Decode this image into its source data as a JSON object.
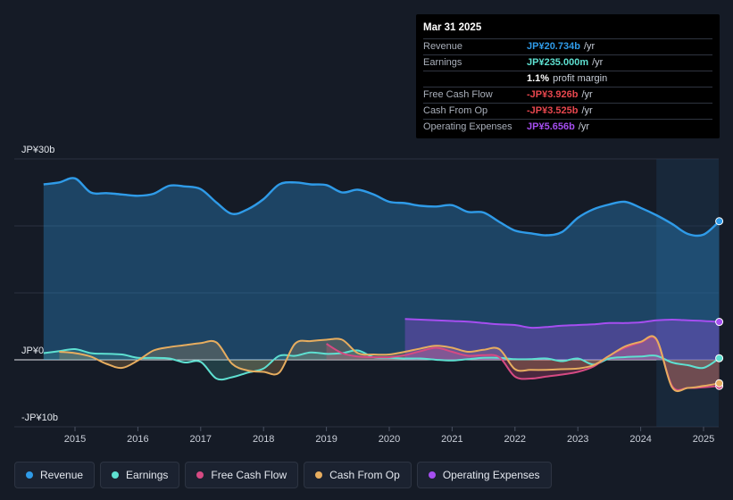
{
  "tooltip": {
    "date": "Mar 31 2025",
    "rows": [
      {
        "label": "Revenue",
        "value": "JP¥20.734b",
        "unit": "/yr",
        "color": "#2f9be8"
      },
      {
        "label": "Earnings",
        "value": "JP¥235.000m",
        "unit": "/yr",
        "color": "#5ee0d1"
      },
      {
        "label": "",
        "value": "1.1%",
        "unit": "profit margin",
        "color": "#ffffff"
      },
      {
        "label": "Free Cash Flow",
        "value": "-JP¥3.926b",
        "unit": "/yr",
        "color": "#e8474e"
      },
      {
        "label": "Cash From Op",
        "value": "-JP¥3.525b",
        "unit": "/yr",
        "color": "#e8474e"
      },
      {
        "label": "Operating Expenses",
        "value": "JP¥5.656b",
        "unit": "/yr",
        "color": "#a54ef0"
      }
    ]
  },
  "legend": [
    {
      "label": "Revenue",
      "color": "#2f9be8"
    },
    {
      "label": "Earnings",
      "color": "#5ee0d1"
    },
    {
      "label": "Free Cash Flow",
      "color": "#d64a83"
    },
    {
      "label": "Cash From Op",
      "color": "#e7ad5f"
    },
    {
      "label": "Operating Expenses",
      "color": "#a54ef0"
    }
  ],
  "chart_data": {
    "type": "area",
    "title": "",
    "xlabel": "",
    "ylabel": "",
    "unit": "JP¥b",
    "ylim": [
      -10,
      30
    ],
    "y_tick_labels": [
      {
        "value": 30,
        "label": "JP¥30b"
      },
      {
        "value": 0,
        "label": "JP¥0"
      },
      {
        "value": -10,
        "label": "-JP¥10b"
      }
    ],
    "gridlines": [
      30,
      20,
      10,
      0,
      -10
    ],
    "x_ticks": [
      2015,
      2016,
      2017,
      2018,
      2019,
      2020,
      2021,
      2022,
      2023,
      2024,
      2025
    ],
    "x_range": [
      2014.3,
      2025.25
    ],
    "forecast_start": 2024.25,
    "series": [
      {
        "name": "Revenue",
        "color": "#2f9be8",
        "x": [
          2014.5,
          2014.75,
          2015.0,
          2015.25,
          2015.5,
          2015.75,
          2016.0,
          2016.25,
          2016.5,
          2016.75,
          2017.0,
          2017.25,
          2017.5,
          2017.75,
          2018.0,
          2018.25,
          2018.5,
          2018.75,
          2019.0,
          2019.25,
          2019.5,
          2019.75,
          2020.0,
          2020.25,
          2020.5,
          2020.75,
          2021.0,
          2021.25,
          2021.5,
          2021.75,
          2022.0,
          2022.25,
          2022.5,
          2022.75,
          2023.0,
          2023.25,
          2023.5,
          2023.75,
          2024.0,
          2024.25,
          2024.5,
          2024.75,
          2025.0,
          2025.25
        ],
        "values": [
          26.2,
          26.5,
          27.1,
          25.0,
          24.9,
          24.7,
          24.5,
          24.8,
          26.0,
          25.9,
          25.5,
          23.5,
          21.8,
          22.5,
          24.0,
          26.2,
          26.5,
          26.2,
          26.1,
          25.0,
          25.4,
          24.7,
          23.6,
          23.4,
          23.0,
          22.9,
          23.1,
          22.1,
          22.0,
          20.6,
          19.3,
          18.9,
          18.6,
          19.1,
          21.2,
          22.5,
          23.2,
          23.6,
          22.7,
          21.6,
          20.3,
          18.8,
          18.7,
          20.7
        ]
      },
      {
        "name": "Earnings",
        "color": "#5ee0d1",
        "x": [
          2014.5,
          2014.75,
          2015.0,
          2015.25,
          2015.5,
          2015.75,
          2016.0,
          2016.25,
          2016.5,
          2016.75,
          2017.0,
          2017.25,
          2017.5,
          2017.75,
          2018.0,
          2018.25,
          2018.5,
          2018.75,
          2019.0,
          2019.25,
          2019.5,
          2019.75,
          2020.0,
          2020.25,
          2020.5,
          2020.75,
          2021.0,
          2021.25,
          2021.5,
          2021.75,
          2022.0,
          2022.25,
          2022.5,
          2022.75,
          2023.0,
          2023.25,
          2023.5,
          2023.75,
          2024.0,
          2024.25,
          2024.5,
          2024.75,
          2025.0,
          2025.25
        ],
        "values": [
          1.0,
          1.3,
          1.6,
          1.0,
          0.9,
          0.8,
          0.3,
          0.3,
          0.2,
          -0.4,
          -0.3,
          -2.8,
          -2.6,
          -1.9,
          -1.3,
          0.6,
          0.6,
          1.1,
          0.9,
          1.0,
          1.4,
          0.4,
          0.3,
          0.2,
          0.2,
          0.0,
          -0.1,
          0.1,
          0.3,
          0.3,
          0.1,
          0.1,
          0.2,
          -0.2,
          0.2,
          -0.7,
          0.2,
          0.4,
          0.5,
          0.6,
          -0.4,
          -0.8,
          -1.2,
          0.24
        ]
      },
      {
        "name": "Free Cash Flow",
        "color": "#d64a83",
        "x": [
          2019.0,
          2019.25,
          2019.5,
          2019.75,
          2020.0,
          2020.25,
          2020.5,
          2020.75,
          2021.0,
          2021.25,
          2021.5,
          2021.75,
          2022.0,
          2022.25,
          2022.5,
          2022.75,
          2023.0,
          2023.25,
          2023.5,
          2023.75,
          2024.0,
          2024.25,
          2024.5,
          2024.75,
          2025.0,
          2025.25
        ],
        "values": [
          2.4,
          1.0,
          0.5,
          0.4,
          0.4,
          0.7,
          1.3,
          1.8,
          1.2,
          0.6,
          0.7,
          0.4,
          -2.5,
          -2.8,
          -2.5,
          -2.2,
          -1.8,
          -1.0,
          0.6,
          1.8,
          2.6,
          3.0,
          -3.9,
          -4.2,
          -4.1,
          -3.9
        ]
      },
      {
        "name": "Cash From Op",
        "color": "#e7ad5f",
        "x": [
          2014.75,
          2015.0,
          2015.25,
          2015.5,
          2015.75,
          2016.0,
          2016.25,
          2016.5,
          2016.75,
          2017.0,
          2017.25,
          2017.5,
          2017.75,
          2018.0,
          2018.25,
          2018.5,
          2018.75,
          2019.0,
          2019.25,
          2019.5,
          2019.75,
          2020.0,
          2020.25,
          2020.5,
          2020.75,
          2021.0,
          2021.25,
          2021.5,
          2021.75,
          2022.0,
          2022.25,
          2022.5,
          2022.75,
          2023.0,
          2023.25,
          2023.5,
          2023.75,
          2024.0,
          2024.25,
          2024.5,
          2024.75,
          2025.0,
          2025.25
        ],
        "values": [
          1.2,
          1.0,
          0.5,
          -0.6,
          -1.2,
          -0.1,
          1.4,
          1.9,
          2.2,
          2.5,
          2.6,
          -0.6,
          -1.6,
          -1.8,
          -1.9,
          2.4,
          2.8,
          3.0,
          3.0,
          1.0,
          0.8,
          0.8,
          1.2,
          1.7,
          2.1,
          1.8,
          1.2,
          1.5,
          1.6,
          -1.4,
          -1.5,
          -1.5,
          -1.4,
          -1.3,
          -0.8,
          0.6,
          2.0,
          2.7,
          3.1,
          -4.1,
          -4.2,
          -3.9,
          -3.5
        ]
      },
      {
        "name": "Operating Expenses",
        "color": "#a54ef0",
        "x": [
          2020.25,
          2020.5,
          2020.75,
          2021.0,
          2021.25,
          2021.5,
          2021.75,
          2022.0,
          2022.25,
          2022.5,
          2022.75,
          2023.0,
          2023.25,
          2023.5,
          2023.75,
          2024.0,
          2024.25,
          2024.5,
          2024.75,
          2025.0,
          2025.25
        ],
        "values": [
          6.1,
          6.0,
          5.9,
          5.8,
          5.7,
          5.5,
          5.3,
          5.2,
          4.8,
          4.9,
          5.1,
          5.2,
          5.3,
          5.5,
          5.5,
          5.6,
          5.9,
          6.0,
          5.9,
          5.8,
          5.66
        ]
      }
    ]
  }
}
